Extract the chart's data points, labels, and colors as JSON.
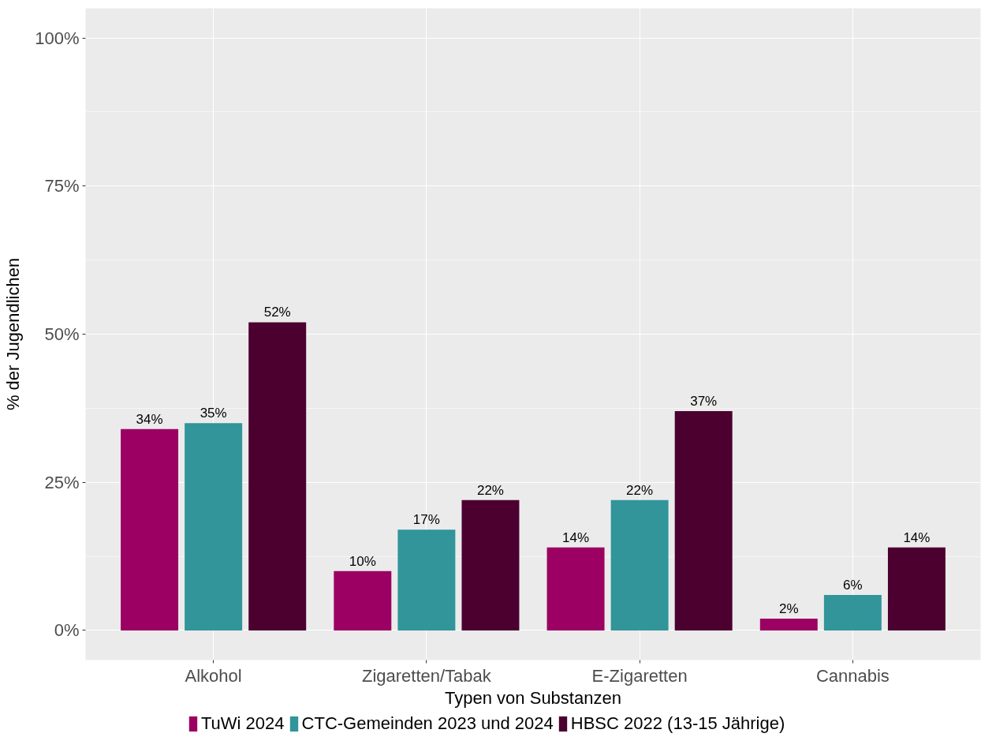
{
  "chart_data": {
    "type": "bar",
    "xlabel": "Typen von Substanzen",
    "ylabel": "% der Jugendlichen",
    "categories": [
      "Alkohol",
      "Zigaretten/Tabak",
      "E-Zigaretten",
      "Cannabis"
    ],
    "series": [
      {
        "name": "TuWi 2024",
        "color": "#9b0062",
        "values": [
          34,
          10,
          14,
          2
        ],
        "value_labels": [
          "34%",
          "10%",
          "14%",
          "2%"
        ]
      },
      {
        "name": "CTC-Gemeinden 2023 und 2024",
        "color": "#31959a",
        "values": [
          35,
          17,
          22,
          6
        ],
        "value_labels": [
          "35%",
          "17%",
          "22%",
          "6%"
        ]
      },
      {
        "name": "HBSC 2022 (13-15 Jährige)",
        "color": "#4b0030",
        "values": [
          52,
          22,
          37,
          14
        ],
        "value_labels": [
          "52%",
          "22%",
          "37%",
          "14%"
        ]
      }
    ],
    "ylim": [
      -5,
      105
    ],
    "yticks": [
      {
        "value": 0,
        "label": "0%"
      },
      {
        "value": 25,
        "label": "25%"
      },
      {
        "value": 50,
        "label": "50%"
      },
      {
        "value": 75,
        "label": "75%"
      },
      {
        "value": 100,
        "label": "100%"
      }
    ],
    "grid": true,
    "legend": "bottom"
  }
}
